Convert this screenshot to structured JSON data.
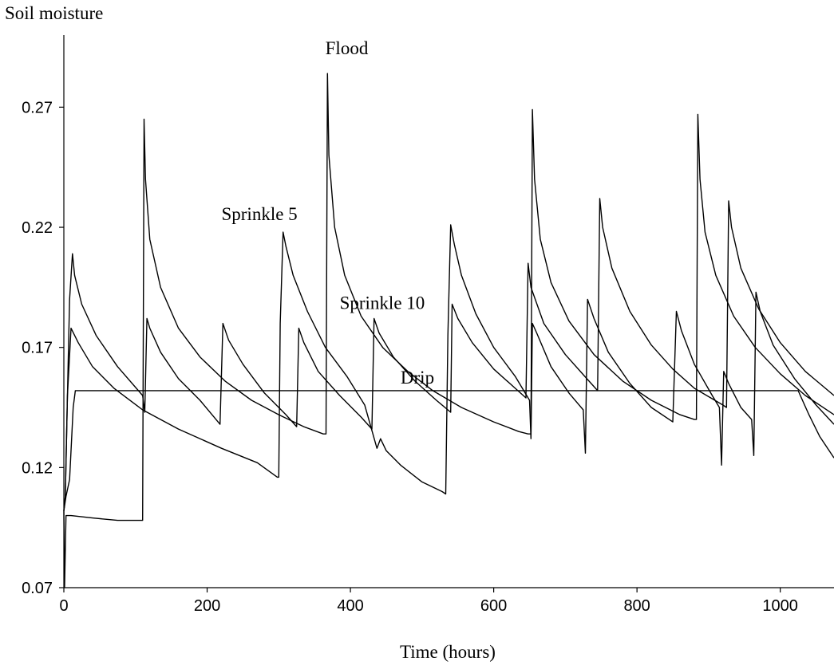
{
  "chart_data": {
    "type": "line",
    "title": "",
    "xlabel": "Time (hours)",
    "ylabel": "Soil moisture",
    "xlim": [
      0,
      1075
    ],
    "ylim": [
      0.07,
      0.3
    ],
    "x_ticks": [
      0,
      200,
      400,
      600,
      800,
      1000
    ],
    "y_ticks": [
      0.07,
      0.12,
      0.17,
      0.22,
      0.27
    ],
    "x_tick_labels": [
      "0",
      "200",
      "400",
      "600",
      "800",
      "1000"
    ],
    "y_tick_labels": [
      "0.07",
      "0.12",
      "0.17",
      "0.22",
      "0.27"
    ],
    "grid": false,
    "legend": "none (inline labels)",
    "series": [
      {
        "name": "Flood",
        "points": [
          [
            0,
            0.102
          ],
          [
            1,
            0.07
          ],
          [
            3,
            0.1
          ],
          [
            10,
            0.1
          ],
          [
            40,
            0.099
          ],
          [
            75,
            0.098
          ],
          [
            108,
            0.098
          ],
          [
            110,
            0.098
          ],
          [
            112,
            0.265
          ],
          [
            114,
            0.24
          ],
          [
            120,
            0.215
          ],
          [
            135,
            0.195
          ],
          [
            160,
            0.178
          ],
          [
            190,
            0.166
          ],
          [
            225,
            0.156
          ],
          [
            262,
            0.148
          ],
          [
            300,
            0.142
          ],
          [
            335,
            0.137
          ],
          [
            362,
            0.134
          ],
          [
            366,
            0.134
          ],
          [
            368,
            0.284
          ],
          [
            370,
            0.25
          ],
          [
            378,
            0.22
          ],
          [
            392,
            0.2
          ],
          [
            415,
            0.183
          ],
          [
            445,
            0.17
          ],
          [
            480,
            0.16
          ],
          [
            515,
            0.152
          ],
          [
            555,
            0.145
          ],
          [
            600,
            0.139
          ],
          [
            635,
            0.135
          ],
          [
            648,
            0.134
          ],
          [
            652,
            0.134
          ],
          [
            654,
            0.269
          ],
          [
            657,
            0.24
          ],
          [
            665,
            0.215
          ],
          [
            680,
            0.197
          ],
          [
            705,
            0.181
          ],
          [
            740,
            0.167
          ],
          [
            780,
            0.156
          ],
          [
            820,
            0.148
          ],
          [
            860,
            0.142
          ],
          [
            880,
            0.14
          ],
          [
            883,
            0.14
          ],
          [
            885,
            0.267
          ],
          [
            888,
            0.24
          ],
          [
            895,
            0.218
          ],
          [
            910,
            0.2
          ],
          [
            935,
            0.183
          ],
          [
            965,
            0.17
          ],
          [
            1000,
            0.159
          ],
          [
            1035,
            0.15
          ],
          [
            1075,
            0.142
          ]
        ]
      },
      {
        "name": "Sprinkle 5",
        "points": [
          [
            0,
            0.102
          ],
          [
            2,
            0.108
          ],
          [
            5,
            0.15
          ],
          [
            8,
            0.19
          ],
          [
            12,
            0.209
          ],
          [
            15,
            0.2
          ],
          [
            25,
            0.188
          ],
          [
            45,
            0.175
          ],
          [
            75,
            0.162
          ],
          [
            110,
            0.15
          ],
          [
            113,
            0.143
          ],
          [
            116,
            0.182
          ],
          [
            120,
            0.178
          ],
          [
            135,
            0.168
          ],
          [
            160,
            0.157
          ],
          [
            190,
            0.148
          ],
          [
            218,
            0.138
          ],
          [
            222,
            0.18
          ],
          [
            230,
            0.173
          ],
          [
            250,
            0.163
          ],
          [
            280,
            0.151
          ],
          [
            310,
            0.142
          ],
          [
            325,
            0.137
          ],
          [
            328,
            0.178
          ],
          [
            335,
            0.172
          ],
          [
            355,
            0.16
          ],
          [
            385,
            0.15
          ],
          [
            415,
            0.141
          ],
          [
            430,
            0.136
          ],
          [
            433,
            0.182
          ],
          [
            440,
            0.176
          ],
          [
            460,
            0.166
          ],
          [
            490,
            0.156
          ],
          [
            520,
            0.148
          ],
          [
            540,
            0.143
          ],
          [
            542,
            0.188
          ],
          [
            550,
            0.182
          ],
          [
            570,
            0.172
          ],
          [
            600,
            0.161
          ],
          [
            630,
            0.153
          ],
          [
            645,
            0.149
          ],
          [
            648,
            0.205
          ],
          [
            652,
            0.195
          ],
          [
            670,
            0.18
          ],
          [
            700,
            0.167
          ],
          [
            730,
            0.157
          ],
          [
            745,
            0.152
          ],
          [
            748,
            0.232
          ],
          [
            752,
            0.22
          ],
          [
            765,
            0.203
          ],
          [
            790,
            0.185
          ],
          [
            820,
            0.171
          ],
          [
            850,
            0.161
          ],
          [
            880,
            0.153
          ],
          [
            920,
            0.146
          ],
          [
            925,
            0.145
          ],
          [
            928,
            0.231
          ],
          [
            932,
            0.22
          ],
          [
            945,
            0.203
          ],
          [
            970,
            0.186
          ],
          [
            1000,
            0.172
          ],
          [
            1035,
            0.16
          ],
          [
            1075,
            0.15
          ]
        ]
      },
      {
        "name": "Sprinkle 10",
        "points": [
          [
            0,
            0.102
          ],
          [
            2,
            0.108
          ],
          [
            5,
            0.15
          ],
          [
            10,
            0.178
          ],
          [
            20,
            0.172
          ],
          [
            40,
            0.162
          ],
          [
            70,
            0.153
          ],
          [
            110,
            0.144
          ],
          [
            160,
            0.136
          ],
          [
            220,
            0.128
          ],
          [
            270,
            0.122
          ],
          [
            298,
            0.116
          ],
          [
            300,
            0.116
          ],
          [
            302,
            0.18
          ],
          [
            306,
            0.218
          ],
          [
            310,
            0.212
          ],
          [
            320,
            0.2
          ],
          [
            340,
            0.185
          ],
          [
            365,
            0.17
          ],
          [
            395,
            0.158
          ],
          [
            420,
            0.146
          ],
          [
            437,
            0.128
          ],
          [
            442,
            0.132
          ],
          [
            450,
            0.127
          ],
          [
            470,
            0.121
          ],
          [
            500,
            0.114
          ],
          [
            528,
            0.11
          ],
          [
            533,
            0.109
          ],
          [
            536,
            0.175
          ],
          [
            540,
            0.221
          ],
          [
            545,
            0.213
          ],
          [
            555,
            0.2
          ],
          [
            575,
            0.184
          ],
          [
            600,
            0.17
          ],
          [
            630,
            0.158
          ],
          [
            650,
            0.148
          ],
          [
            652,
            0.132
          ],
          [
            654,
            0.18
          ],
          [
            660,
            0.176
          ],
          [
            680,
            0.162
          ],
          [
            705,
            0.151
          ],
          [
            725,
            0.144
          ],
          [
            728,
            0.126
          ],
          [
            731,
            0.19
          ],
          [
            740,
            0.182
          ],
          [
            760,
            0.168
          ],
          [
            790,
            0.155
          ],
          [
            820,
            0.145
          ],
          [
            850,
            0.139
          ],
          [
            855,
            0.185
          ],
          [
            862,
            0.177
          ],
          [
            880,
            0.163
          ],
          [
            905,
            0.15
          ],
          [
            915,
            0.145
          ],
          [
            918,
            0.121
          ],
          [
            921,
            0.16
          ],
          [
            928,
            0.155
          ],
          [
            945,
            0.145
          ],
          [
            960,
            0.14
          ],
          [
            963,
            0.125
          ],
          [
            966,
            0.193
          ],
          [
            972,
            0.185
          ],
          [
            990,
            0.171
          ],
          [
            1020,
            0.157
          ],
          [
            1050,
            0.146
          ],
          [
            1075,
            0.138
          ]
        ]
      },
      {
        "name": "Drip",
        "points": [
          [
            0,
            0.102
          ],
          [
            3,
            0.108
          ],
          [
            8,
            0.115
          ],
          [
            13,
            0.145
          ],
          [
            16,
            0.152
          ],
          [
            100,
            0.152
          ],
          [
            200,
            0.152
          ],
          [
            400,
            0.152
          ],
          [
            600,
            0.152
          ],
          [
            800,
            0.152
          ],
          [
            1025,
            0.152
          ],
          [
            1028,
            0.15
          ],
          [
            1040,
            0.142
          ],
          [
            1055,
            0.133
          ],
          [
            1075,
            0.124
          ]
        ]
      }
    ],
    "annotations": [
      {
        "text": "Flood",
        "x": 365,
        "y": 0.292
      },
      {
        "text": "Sprinkle 5",
        "x": 220,
        "y": 0.223
      },
      {
        "text": "Sprinkle 10",
        "x": 385,
        "y": 0.186
      },
      {
        "text": "Drip",
        "x": 470,
        "y": 0.155
      }
    ]
  }
}
